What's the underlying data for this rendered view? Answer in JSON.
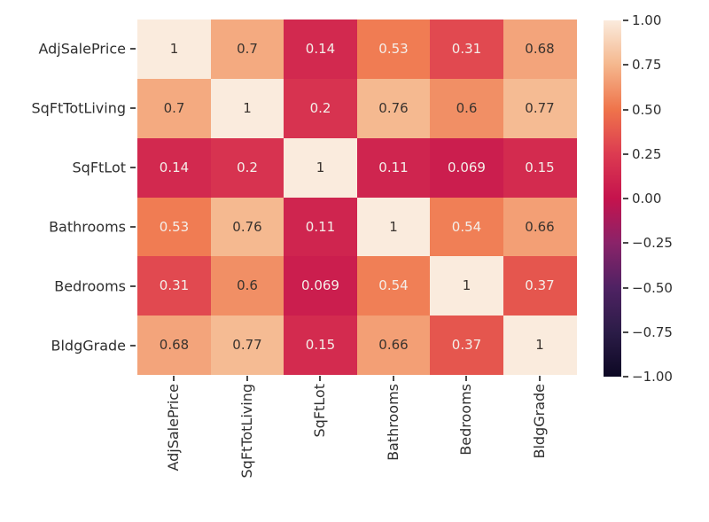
{
  "figure": {
    "background_color": "#ffffff",
    "tick_color": "#4a4a4a",
    "label_color": "#2f2f2f"
  },
  "chart_data": {
    "type": "heatmap",
    "title": "",
    "variables": [
      "AdjSalePrice",
      "SqFtTotLiving",
      "SqFtLot",
      "Bathrooms",
      "Bedrooms",
      "BldgGrade"
    ],
    "matrix": [
      [
        1,
        0.7,
        0.14,
        0.53,
        0.31,
        0.68
      ],
      [
        0.7,
        1,
        0.2,
        0.76,
        0.6,
        0.77
      ],
      [
        0.14,
        0.2,
        1,
        0.11,
        0.069,
        0.15
      ],
      [
        0.53,
        0.76,
        0.11,
        1,
        0.54,
        0.66
      ],
      [
        0.31,
        0.6,
        0.069,
        0.54,
        1,
        0.37
      ],
      [
        0.68,
        0.77,
        0.15,
        0.66,
        0.37,
        1
      ]
    ],
    "annotations": [
      [
        "1",
        "0.7",
        "0.14",
        "0.53",
        "0.31",
        "0.68"
      ],
      [
        "0.7",
        "1",
        "0.2",
        "0.76",
        "0.6",
        "0.77"
      ],
      [
        "0.14",
        "0.2",
        "1",
        "0.11",
        "0.069",
        "0.15"
      ],
      [
        "0.53",
        "0.76",
        "0.11",
        "1",
        "0.54",
        "0.66"
      ],
      [
        "0.31",
        "0.6",
        "0.069",
        "0.54",
        "1",
        "0.37"
      ],
      [
        "0.68",
        "0.77",
        "0.15",
        "0.66",
        "0.37",
        "1"
      ]
    ],
    "x_axis": {
      "tick_labels": [
        "AdjSalePrice",
        "SqFtTotLiving",
        "SqFtLot",
        "Bathrooms",
        "Bedrooms",
        "BldgGrade"
      ],
      "rotation_deg": 90
    },
    "y_axis": {
      "tick_labels": [
        "AdjSalePrice",
        "SqFtTotLiving",
        "SqFtLot",
        "Bathrooms",
        "Bedrooms",
        "BldgGrade"
      ],
      "rotation_deg": 0
    },
    "colorbar": {
      "position": "right",
      "vmin": -1.0,
      "vmax": 1.0,
      "tick_labels": [
        "1.00",
        "0.75",
        "0.50",
        "0.25",
        "0.00",
        "−0.25",
        "−0.50",
        "−0.75",
        "−1.00"
      ],
      "tick_values": [
        1.0,
        0.75,
        0.5,
        0.25,
        0.0,
        -0.25,
        -0.5,
        -0.75,
        -1.0
      ]
    },
    "colormap": {
      "name": "rocket",
      "stops": [
        {
          "v": -1.0,
          "color": "#0D0824"
        },
        {
          "v": -0.75,
          "color": "#2B1C47"
        },
        {
          "v": -0.5,
          "color": "#4F2263"
        },
        {
          "v": -0.25,
          "color": "#8A2369"
        },
        {
          "v": 0.0,
          "color": "#C5134D"
        },
        {
          "v": 0.25,
          "color": "#DC3B51"
        },
        {
          "v": 0.5,
          "color": "#EF744B"
        },
        {
          "v": 0.75,
          "color": "#F5B78D"
        },
        {
          "v": 1.0,
          "color": "#FAEBDD"
        }
      ]
    },
    "annotation_text": {
      "light_color": "#F4EEE9",
      "dark_color": "#3A332E",
      "light_text_below_value": 0.55
    },
    "grid": false,
    "legend": null
  }
}
